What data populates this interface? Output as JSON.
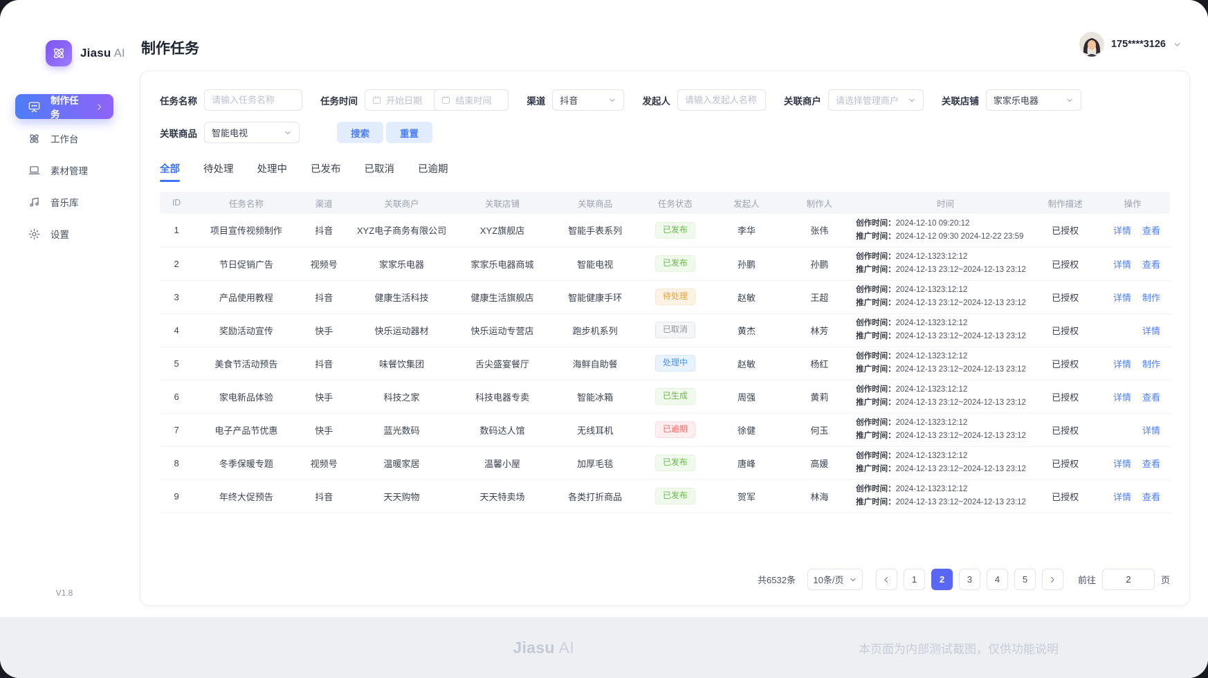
{
  "app": {
    "brand": "Jiasu",
    "brand_suffix": "AI",
    "version": "V1.8"
  },
  "sidebar": {
    "items": [
      {
        "label": "制作任务",
        "icon": "screen-icon",
        "active": true
      },
      {
        "label": "工作台",
        "icon": "workbench-icon",
        "active": false
      },
      {
        "label": "素材管理",
        "icon": "material-icon",
        "active": false
      },
      {
        "label": "音乐库",
        "icon": "music-icon",
        "active": false
      },
      {
        "label": "设置",
        "icon": "settings-icon",
        "active": false
      }
    ]
  },
  "header": {
    "title": "制作任务",
    "user_phone": "175****3126"
  },
  "filters": {
    "task_name_label": "任务名称",
    "task_name_placeholder": "请输入任务名称",
    "task_time_label": "任务时间",
    "start_placeholder": "开始日期",
    "end_placeholder": "结束时间",
    "range_separator": "-",
    "channel_label": "渠道",
    "channel_value": "抖音",
    "initiator_label": "发起人",
    "initiator_placeholder": "请输入发起人名称",
    "merchant_label": "关联商户",
    "merchant_placeholder": "请选择管理商户",
    "store_label": "关联店铺",
    "store_value": "家家乐电器",
    "product_label": "关联商品",
    "product_value": "智能电视",
    "search_label": "搜索",
    "reset_label": "重置"
  },
  "tabs": [
    {
      "label": "全部",
      "active": true
    },
    {
      "label": "待处理",
      "active": false
    },
    {
      "label": "处理中",
      "active": false
    },
    {
      "label": "已发布",
      "active": false
    },
    {
      "label": "已取消",
      "active": false
    },
    {
      "label": "已逾期",
      "active": false
    }
  ],
  "table": {
    "columns": [
      "ID",
      "任务名称",
      "渠道",
      "关联商户",
      "关联店铺",
      "关联商品",
      "任务状态",
      "发起人",
      "制作人",
      "时间",
      "制作描述",
      "操作"
    ],
    "rows": [
      {
        "id": "1",
        "name": "项目宣传视频制作",
        "channel": "抖音",
        "merchant": "XYZ电子商务有限公司",
        "store": "XYZ旗舰店",
        "product": "智能手表系列",
        "status": "已发布",
        "status_type": "success",
        "initiator": "李华",
        "maker": "张伟",
        "create_label": "创作时间：",
        "create_time": "2024-12-10 09:20:12",
        "promo_label": "推广时间：",
        "promo_time": "2024-12-12 09:30 2024-12-22 23:59",
        "desc": "已授权",
        "actions": [
          "详情",
          "查看"
        ]
      },
      {
        "id": "2",
        "name": "节日促销广告",
        "channel": "视频号",
        "merchant": "家家乐电器",
        "store": "家家乐电器商城",
        "product": "智能电视",
        "status": "已发布",
        "status_type": "success",
        "initiator": "孙鹏",
        "maker": "孙鹏",
        "create_label": "创作时间：",
        "create_time": "2024-12-1323:12:12",
        "promo_label": "推广时间：",
        "promo_time": "2024-12-13 23:12~2024-12-13 23:12",
        "desc": "已授权",
        "actions": [
          "详情",
          "查看"
        ]
      },
      {
        "id": "3",
        "name": "产品使用教程",
        "channel": "抖音",
        "merchant": "健康生活科技",
        "store": "健康生活旗舰店",
        "product": "智能健康手环",
        "status": "待处理",
        "status_type": "warning",
        "initiator": "赵敏",
        "maker": "王超",
        "create_label": "创作时间：",
        "create_time": "2024-12-1323:12:12",
        "promo_label": "推广时间：",
        "promo_time": "2024-12-13 23:12~2024-12-13 23:12",
        "desc": "已授权",
        "actions": [
          "详情",
          "制作"
        ]
      },
      {
        "id": "4",
        "name": "奖励活动宣传",
        "channel": "快手",
        "merchant": "快乐运动器材",
        "store": "快乐运动专营店",
        "product": "跑步机系列",
        "status": "已取消",
        "status_type": "info",
        "initiator": "黄杰",
        "maker": "林芳",
        "create_label": "创作时间：",
        "create_time": "2024-12-1323:12:12",
        "promo_label": "推广时间：",
        "promo_time": "2024-12-13 23:12~2024-12-13 23:12",
        "desc": "已授权",
        "actions": [
          "详情"
        ]
      },
      {
        "id": "5",
        "name": "美食节活动预告",
        "channel": "抖音",
        "merchant": "味餐饮集团",
        "store": "舌尖盛宴餐厅",
        "product": "海鲜自助餐",
        "status": "处理中",
        "status_type": "processing",
        "initiator": "赵敏",
        "maker": "杨红",
        "create_label": "创作时间：",
        "create_time": "2024-12-1323:12:12",
        "promo_label": "推广时间：",
        "promo_time": "2024-12-13 23:12~2024-12-13 23:12",
        "desc": "已授权",
        "actions": [
          "详情",
          "制作"
        ]
      },
      {
        "id": "6",
        "name": "家电新品体验",
        "channel": "快手",
        "merchant": "科技之家",
        "store": "科技电器专卖",
        "product": "智能冰箱",
        "status": "已生成",
        "status_type": "success",
        "initiator": "周强",
        "maker": "黄莉",
        "create_label": "创作时间：",
        "create_time": "2024-12-1323:12:12",
        "promo_label": "推广时间：",
        "promo_time": "2024-12-13 23:12~2024-12-13 23:12",
        "desc": "已授权",
        "actions": [
          "详情",
          "查看"
        ]
      },
      {
        "id": "7",
        "name": "电子产品节优惠",
        "channel": "快手",
        "merchant": "蓝光数码",
        "store": "数码达人馆",
        "product": "无线耳机",
        "status": "已逾期",
        "status_type": "danger",
        "initiator": "徐健",
        "maker": "何玉",
        "create_label": "创作时间：",
        "create_time": "2024-12-1323:12:12",
        "promo_label": "推广时间：",
        "promo_time": "2024-12-13 23:12~2024-12-13 23:12",
        "desc": "已授权",
        "actions": [
          "详情"
        ]
      },
      {
        "id": "8",
        "name": "冬季保暖专题",
        "channel": "视频号",
        "merchant": "温暖家居",
        "store": "温馨小屋",
        "product": "加厚毛毯",
        "status": "已发布",
        "status_type": "success",
        "initiator": "唐峰",
        "maker": "高媛",
        "create_label": "创作时间：",
        "create_time": "2024-12-1323:12:12",
        "promo_label": "推广时间：",
        "promo_time": "2024-12-13 23:12~2024-12-13 23:12",
        "desc": "已授权",
        "actions": [
          "详情",
          "查看"
        ]
      },
      {
        "id": "9",
        "name": "年终大促预告",
        "channel": "抖音",
        "merchant": "天天购物",
        "store": "天天特卖场",
        "product": "各类打折商品",
        "status": "已发布",
        "status_type": "success",
        "initiator": "贺军",
        "maker": "林海",
        "create_label": "创作时间：",
        "create_time": "2024-12-1323:12:12",
        "promo_label": "推广时间：",
        "promo_time": "2024-12-13 23:12~2024-12-13 23:12",
        "desc": "已授权",
        "actions": [
          "详情",
          "查看"
        ]
      }
    ]
  },
  "pagination": {
    "total": "共6532条",
    "page_size": "10条/页",
    "pages": [
      "1",
      "2",
      "3",
      "4",
      "5"
    ],
    "active_page": "2",
    "goto_label": "前往",
    "goto_value": "2",
    "goto_suffix": "页"
  },
  "footer": {
    "brand": "Jiasu",
    "brand_suffix": "AI",
    "disclaimer": "本页面为内部测试截图，仅供功能说明"
  },
  "colors": {
    "accent_blue": "#3d74f6",
    "link_blue": "#4d7ef7",
    "pager_active": "#5968f4",
    "sidebar_gradient_start": "#4d7df8",
    "sidebar_gradient_end": "#8f63f7",
    "badge_success": "#67b94a",
    "badge_warning": "#eba13c",
    "badge_info": "#8f959e",
    "badge_processing": "#4693f8",
    "badge_danger": "#f16a6a"
  }
}
